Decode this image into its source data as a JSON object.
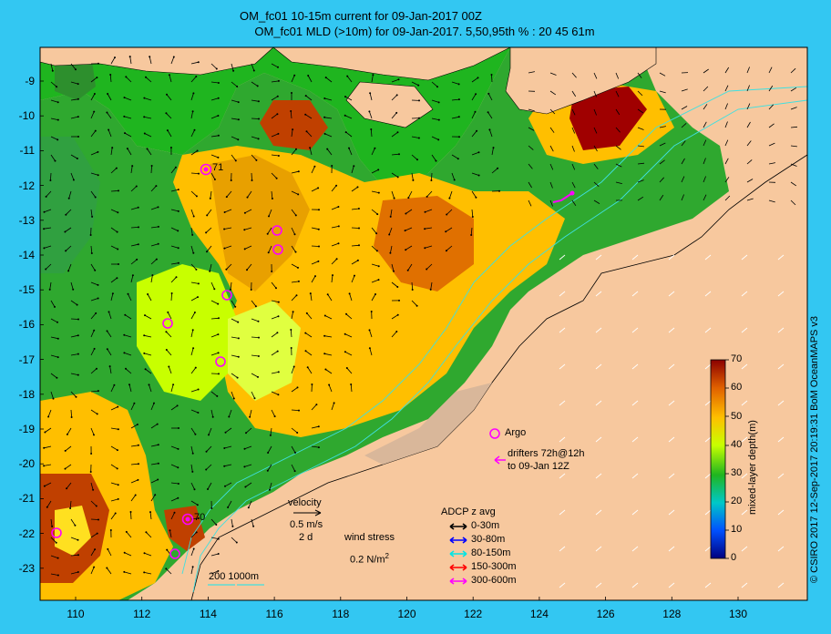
{
  "title": {
    "line1": "OM_fc01 10-15m current for 09-Jan-2017 00Z",
    "line2": "OM_fc01 MLD (>10m) for 09-Jan-2017. 5,50,95th % : 20  45  61m"
  },
  "axes": {
    "x_ticks": [
      "110",
      "112",
      "114",
      "116",
      "118",
      "120",
      "122",
      "124",
      "126",
      "128",
      "130"
    ],
    "y_ticks": [
      "-9",
      "-10",
      "-11",
      "-12",
      "-13",
      "-14",
      "-15",
      "-16",
      "-17",
      "-18",
      "-19",
      "-20",
      "-21",
      "-22",
      "-23"
    ]
  },
  "colorbar": {
    "label": "mixed-layer depth(m)",
    "ticks": [
      "0",
      "10",
      "20",
      "30",
      "40",
      "50",
      "60",
      "70"
    ]
  },
  "legend": {
    "argo": "Argo",
    "drifters_line1": "drifters 72h@12h",
    "drifters_line2": "to 09-Jan 12Z",
    "velocity": "velocity",
    "velocity_scale": "0.5 m/s",
    "velocity_time": "2 d",
    "wind_stress": "wind stress",
    "wind_scale": "0.2 N/m",
    "wind_exp": "2",
    "adcp_title": "ADCP z avg",
    "adcp_items": [
      {
        "label": "0-30m",
        "color": "#000000"
      },
      {
        "label": "30-80m",
        "color": "#0000ff"
      },
      {
        "label": "80-150m",
        "color": "#00e5e5"
      },
      {
        "label": "150-300m",
        "color": "#ff0000"
      },
      {
        "label": "300-600m",
        "color": "#ff00ff"
      }
    ],
    "isobaths": "200  1000m"
  },
  "labels": {
    "site_a": "71",
    "site_b": "70"
  },
  "credit": "© CSIRO 2017   12-Sep-2017 20:19:31 BoM OceanMAPS v3"
}
